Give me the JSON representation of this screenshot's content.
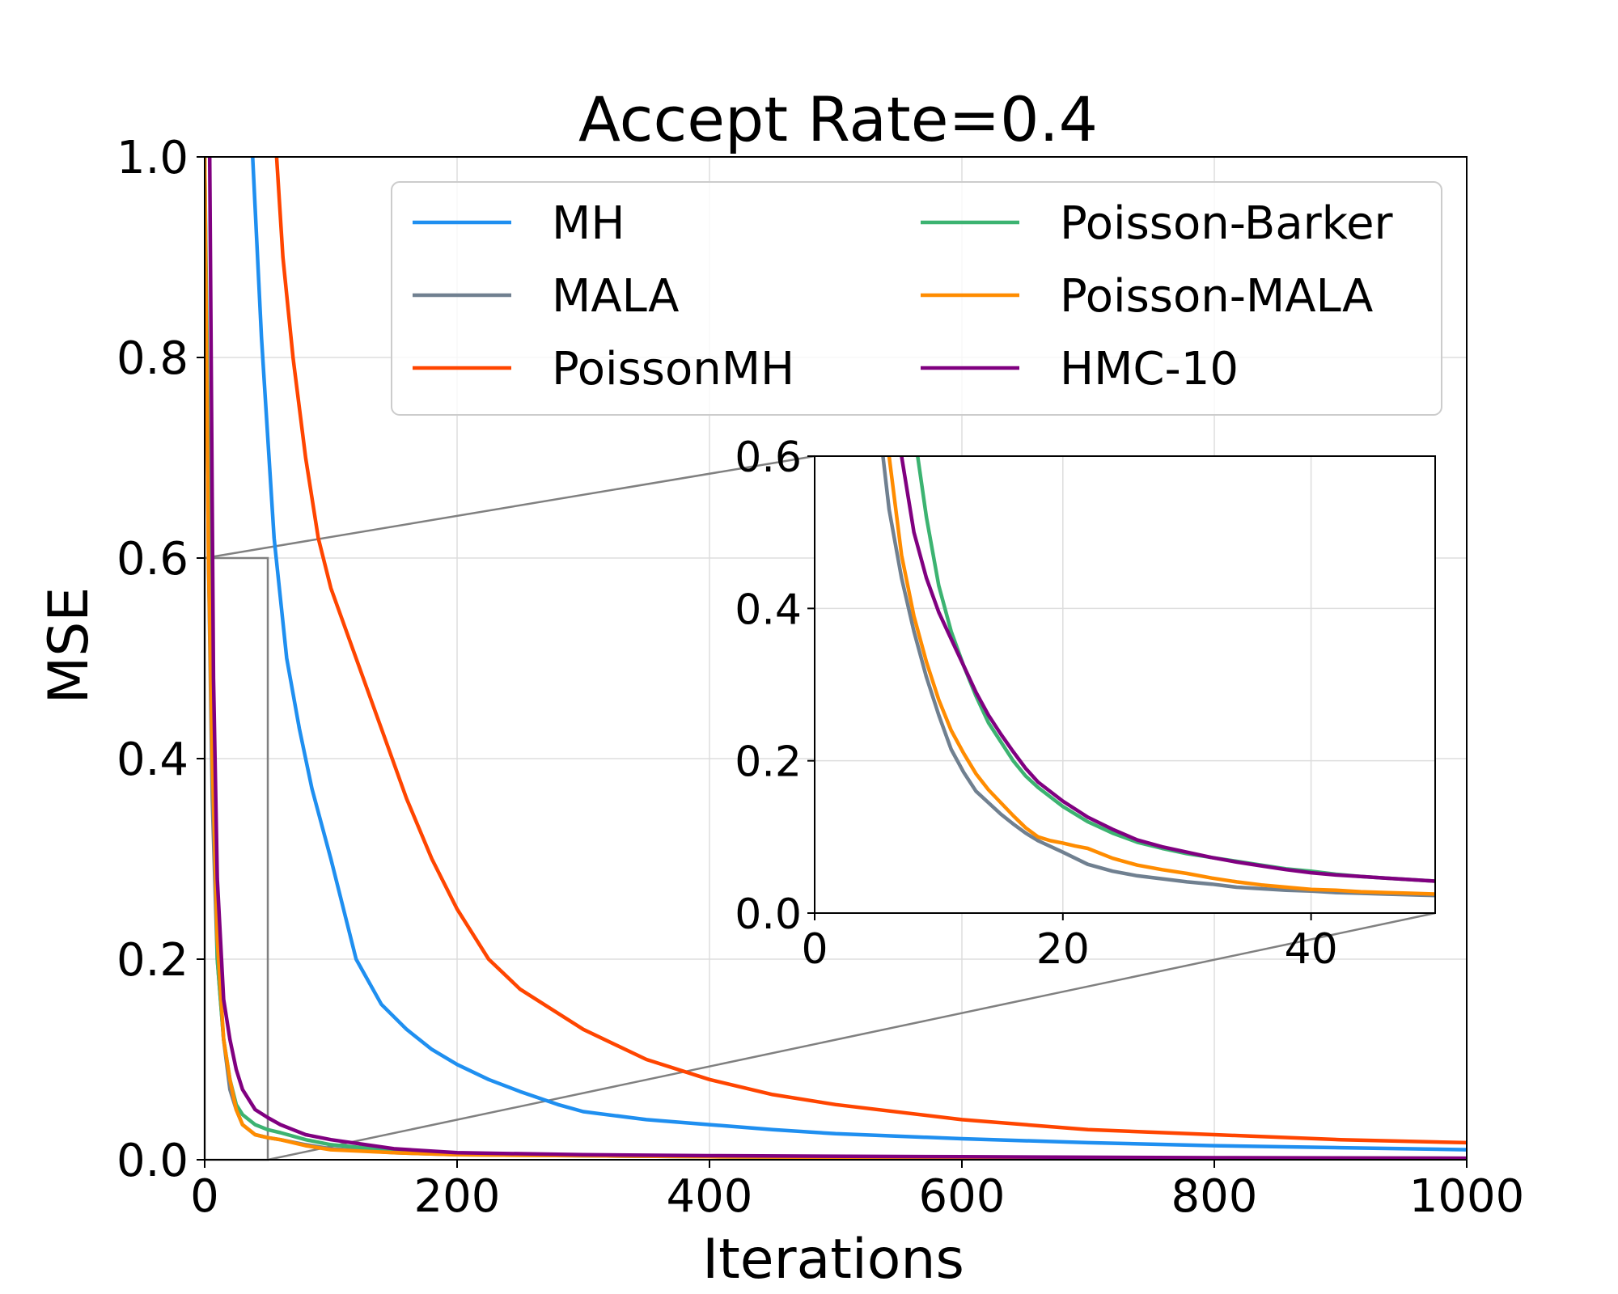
{
  "chart_data": {
    "type": "line",
    "title": "Accept Rate=0.4",
    "xlabel": "Iterations",
    "ylabel": "MSE",
    "xlim": [
      0,
      1000
    ],
    "ylim": [
      0,
      1.0
    ],
    "grid": true,
    "legend_position": "top-right",
    "x_ticks": [
      0,
      200,
      400,
      600,
      800,
      1000
    ],
    "x_tick_labels": [
      "0",
      "200",
      "400",
      "600",
      "800",
      "1000"
    ],
    "y_ticks": [
      0,
      0.2,
      0.4,
      0.6,
      0.8,
      1.0
    ],
    "y_tick_labels": [
      "0.0",
      "0.2",
      "0.4",
      "0.6",
      "0.8",
      "1.0"
    ],
    "series": [
      {
        "name": "MH",
        "color": "#1f8ff0",
        "x": [
          38,
          45,
          55,
          65,
          75,
          85,
          100,
          120,
          140,
          160,
          180,
          200,
          225,
          250,
          280,
          300,
          350,
          400,
          450,
          500,
          600,
          700,
          800,
          900,
          1000
        ],
        "y": [
          1.0,
          0.82,
          0.62,
          0.5,
          0.43,
          0.37,
          0.3,
          0.2,
          0.155,
          0.13,
          0.11,
          0.095,
          0.08,
          0.068,
          0.055,
          0.048,
          0.04,
          0.035,
          0.03,
          0.026,
          0.021,
          0.017,
          0.014,
          0.012,
          0.01
        ]
      },
      {
        "name": "MALA",
        "color": "#708090",
        "x": [
          0,
          3,
          6,
          10,
          15,
          20,
          25,
          30,
          40,
          50,
          60,
          80,
          100,
          150,
          200,
          300,
          400,
          600,
          800,
          1000
        ],
        "y": [
          1.0,
          0.6,
          0.36,
          0.2,
          0.12,
          0.07,
          0.05,
          0.035,
          0.025,
          0.022,
          0.02,
          0.015,
          0.011,
          0.007,
          0.005,
          0.004,
          0.003,
          0.002,
          0.0015,
          0.001
        ]
      },
      {
        "name": "PoissonMH",
        "color": "#ff4500",
        "x": [
          57,
          62,
          70,
          80,
          90,
          100,
          120,
          140,
          160,
          180,
          200,
          225,
          250,
          300,
          350,
          400,
          450,
          500,
          600,
          700,
          800,
          900,
          1000
        ],
        "y": [
          1.0,
          0.9,
          0.8,
          0.7,
          0.62,
          0.57,
          0.5,
          0.43,
          0.36,
          0.3,
          0.25,
          0.2,
          0.17,
          0.13,
          0.1,
          0.08,
          0.065,
          0.055,
          0.04,
          0.03,
          0.025,
          0.02,
          0.017
        ]
      },
      {
        "name": "Poisson-Barker",
        "color": "#3cb371",
        "x": [
          0,
          4,
          7,
          10,
          15,
          20,
          25,
          30,
          40,
          50,
          60,
          80,
          100,
          150,
          200,
          300,
          400,
          600,
          800,
          1000
        ],
        "y": [
          1.0,
          0.6,
          0.42,
          0.2,
          0.12,
          0.08,
          0.055,
          0.045,
          0.035,
          0.03,
          0.027,
          0.02,
          0.015,
          0.009,
          0.006,
          0.004,
          0.003,
          0.002,
          0.0015,
          0.001
        ]
      },
      {
        "name": "Poisson-MALA",
        "color": "#ff8c00",
        "x": [
          0,
          3,
          6,
          10,
          15,
          20,
          25,
          30,
          40,
          50,
          60,
          80,
          100,
          150,
          200,
          300,
          400,
          600,
          800,
          1000
        ],
        "y": [
          1.0,
          0.6,
          0.4,
          0.22,
          0.12,
          0.08,
          0.05,
          0.035,
          0.025,
          0.022,
          0.02,
          0.014,
          0.01,
          0.007,
          0.005,
          0.004,
          0.003,
          0.002,
          0.0015,
          0.001
        ]
      },
      {
        "name": "HMC-10",
        "color": "#800080",
        "x": [
          4,
          7,
          10,
          15,
          20,
          25,
          30,
          40,
          50,
          60,
          70,
          80,
          100,
          150,
          200,
          300,
          400,
          600,
          800,
          1000
        ],
        "y": [
          1.0,
          0.48,
          0.28,
          0.16,
          0.12,
          0.09,
          0.07,
          0.05,
          0.042,
          0.035,
          0.03,
          0.025,
          0.02,
          0.011,
          0.007,
          0.005,
          0.004,
          0.003,
          0.002,
          0.0015
        ]
      }
    ],
    "inset": {
      "xlim": [
        0,
        50
      ],
      "ylim": [
        0,
        0.6
      ],
      "x_ticks": [
        0,
        20,
        40
      ],
      "x_tick_labels": [
        "0",
        "20",
        "40"
      ],
      "y_ticks": [
        0,
        0.2,
        0.4,
        0.6
      ],
      "y_tick_labels": [
        "0.0",
        "0.2",
        "0.4",
        "0.6"
      ],
      "series": [
        {
          "name": "MALA",
          "color": "#708090",
          "x": [
            5.5,
            6,
            7,
            8,
            9,
            10,
            11,
            12,
            13,
            14,
            15,
            16,
            17,
            18,
            20,
            22,
            24,
            26,
            28,
            30,
            32,
            34,
            36,
            38,
            40,
            42,
            44,
            46,
            48,
            50
          ],
          "y": [
            0.6,
            0.53,
            0.44,
            0.37,
            0.31,
            0.26,
            0.215,
            0.185,
            0.16,
            0.145,
            0.13,
            0.117,
            0.105,
            0.095,
            0.08,
            0.064,
            0.055,
            0.049,
            0.045,
            0.041,
            0.038,
            0.034,
            0.032,
            0.03,
            0.029,
            0.027,
            0.026,
            0.025,
            0.024,
            0.023
          ]
        },
        {
          "name": "Poisson-MALA",
          "color": "#ff8c00",
          "x": [
            6,
            7,
            8,
            9,
            10,
            11,
            12,
            13,
            14,
            15,
            16,
            17,
            18,
            19,
            20,
            21,
            22,
            24,
            26,
            28,
            30,
            32,
            34,
            36,
            38,
            40,
            42,
            44,
            46,
            48,
            50
          ],
          "y": [
            0.6,
            0.47,
            0.39,
            0.33,
            0.28,
            0.24,
            0.21,
            0.183,
            0.162,
            0.145,
            0.128,
            0.112,
            0.1,
            0.095,
            0.092,
            0.088,
            0.085,
            0.072,
            0.063,
            0.057,
            0.052,
            0.046,
            0.041,
            0.037,
            0.034,
            0.031,
            0.03,
            0.028,
            0.027,
            0.026,
            0.025
          ]
        },
        {
          "name": "Poisson-Barker",
          "color": "#3cb371",
          "x": [
            8.3,
            9,
            10,
            11,
            12,
            13,
            14,
            15,
            16,
            17,
            18,
            20,
            22,
            24,
            26,
            28,
            30,
            32,
            34,
            36,
            38,
            40,
            42,
            44,
            46,
            48,
            50
          ],
          "y": [
            0.6,
            0.52,
            0.43,
            0.37,
            0.325,
            0.285,
            0.25,
            0.225,
            0.2,
            0.18,
            0.165,
            0.14,
            0.12,
            0.105,
            0.093,
            0.085,
            0.078,
            0.073,
            0.068,
            0.063,
            0.058,
            0.055,
            0.051,
            0.048,
            0.046,
            0.044,
            0.042
          ]
        },
        {
          "name": "HMC-10",
          "color": "#800080",
          "x": [
            7,
            8,
            9,
            10,
            11,
            12,
            13,
            14,
            15,
            16,
            17,
            18,
            20,
            22,
            24,
            26,
            28,
            30,
            32,
            34,
            36,
            38,
            40,
            42,
            44,
            46,
            48,
            50
          ],
          "y": [
            0.6,
            0.5,
            0.44,
            0.395,
            0.36,
            0.325,
            0.29,
            0.26,
            0.235,
            0.212,
            0.19,
            0.172,
            0.147,
            0.126,
            0.11,
            0.096,
            0.087,
            0.08,
            0.073,
            0.067,
            0.062,
            0.057,
            0.053,
            0.05,
            0.048,
            0.046,
            0.044,
            0.042
          ]
        }
      ]
    }
  }
}
